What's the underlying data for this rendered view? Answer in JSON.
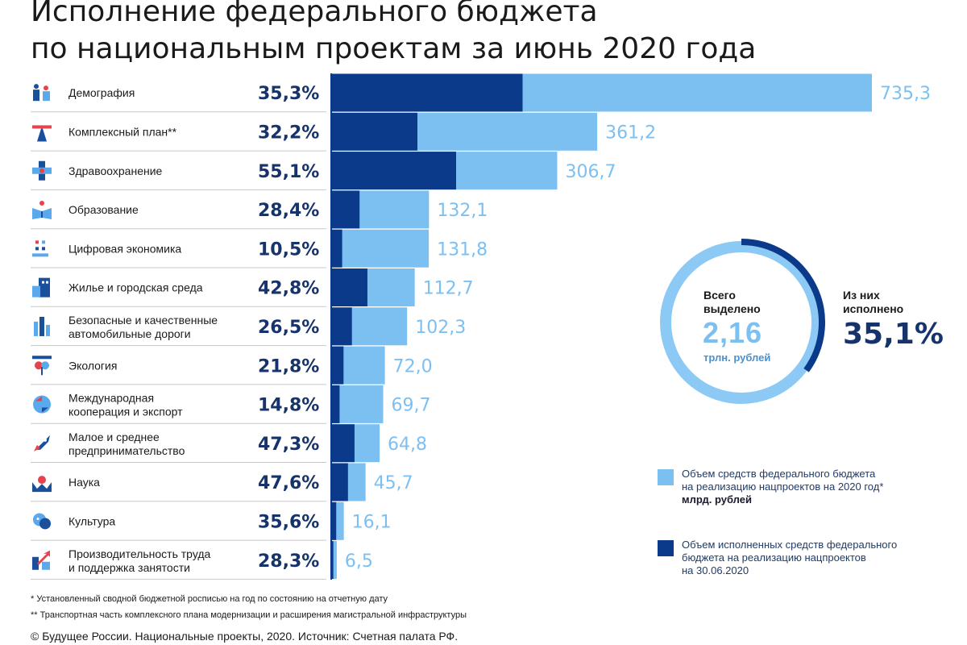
{
  "title": {
    "line1": "Исполнение федерального бюджета",
    "line2": "по национальным проектам за июнь 2020 года"
  },
  "colors": {
    "light_blue": "#7cc0f2",
    "dark_blue": "#0b3a8a",
    "ring_light": "#8cc9f5",
    "ring_dark": "#0b3a8a",
    "separator": "#c8c8c8"
  },
  "chart_data": {
    "type": "bar",
    "orientation": "horizontal",
    "unit": "млрд. рублей",
    "categories": [
      {
        "label_lines": [
          "Демография"
        ],
        "icon": "family-icon"
      },
      {
        "label_lines": [
          "Комплексный план**"
        ],
        "icon": "highway-icon"
      },
      {
        "label_lines": [
          "Здравоохранение"
        ],
        "icon": "medical-cross-icon"
      },
      {
        "label_lines": [
          "Образование"
        ],
        "icon": "book-reader-icon"
      },
      {
        "label_lines": [
          "Цифровая экономика"
        ],
        "icon": "digital-grid-icon"
      },
      {
        "label_lines": [
          "Жилье и городская среда"
        ],
        "icon": "building-icon"
      },
      {
        "label_lines": [
          "Безопасные и качественные",
          "автомобильные дороги"
        ],
        "icon": "road-city-icon"
      },
      {
        "label_lines": [
          "Экология"
        ],
        "icon": "plant-icon"
      },
      {
        "label_lines": [
          "Международная",
          "кооперация и экспорт"
        ],
        "icon": "globe-arrows-icon"
      },
      {
        "label_lines": [
          "Малое и среднее",
          "предпринимательство"
        ],
        "icon": "rocket-icon"
      },
      {
        "label_lines": [
          "Наука"
        ],
        "icon": "atom-hands-icon"
      },
      {
        "label_lines": [
          "Культура"
        ],
        "icon": "masks-icon"
      },
      {
        "label_lines": [
          "Производительность труда",
          "и поддержка занятости"
        ],
        "icon": "growth-arrow-icon"
      }
    ],
    "series": [
      {
        "name": "Объем средств федерального бюджета на реализацию нацпроектов на 2020 год*",
        "values": [
          735.3,
          361.2,
          306.7,
          132.1,
          131.8,
          112.7,
          102.3,
          72.0,
          69.7,
          64.8,
          45.7,
          16.1,
          6.5
        ],
        "value_labels": [
          "735,3",
          "361,2",
          "306,7",
          "132,1",
          "131,8",
          "112,7",
          "102,3",
          "72,0",
          "69,7",
          "64,8",
          "45,7",
          "16,1",
          "6,5"
        ]
      },
      {
        "name": "Объем исполненных средств федерального бюджета на реализацию нацпроектов на 30.06.2020",
        "percent_executed": [
          35.3,
          32.2,
          55.1,
          28.4,
          10.5,
          42.8,
          26.5,
          21.8,
          14.8,
          47.3,
          47.6,
          35.6,
          28.3
        ],
        "percent_labels": [
          "35,3%",
          "32,2%",
          "55,1%",
          "28,4%",
          "10,5%",
          "42,8%",
          "26,5%",
          "21,8%",
          "14,8%",
          "47,3%",
          "47,6%",
          "35,6%",
          "28,3%"
        ]
      }
    ],
    "xlim": [
      0,
      735.3
    ],
    "grid": false
  },
  "summary": {
    "total_label_1": "Всего",
    "total_label_2": "выделено",
    "total_value": "2,16",
    "total_unit": "трлн. рублей",
    "executed_label_1": "Из них",
    "executed_label_2": "исполнено",
    "executed_value": "35,1%",
    "executed_fraction": 0.351
  },
  "legend": {
    "allocated_line1": "Объем средств федерального бюджета",
    "allocated_line2": "на реализацию нацпроектов на 2020 год*",
    "allocated_unit": "млрд. рублей",
    "executed_line1": "Объем исполненных средств федерального",
    "executed_line2": "бюджета на реализацию нацпроектов",
    "executed_line3": "на 30.06.2020"
  },
  "footnotes": {
    "note1": "* Установленный сводной бюджетной росписью на год по состоянию на отчетную дату",
    "note2": "** Транспортная часть комплексного плана модернизации и расширения магистральной инфраструктуры",
    "source": "© Будущее России. Национальные проекты, 2020. Источник: Счетная палата РФ."
  }
}
